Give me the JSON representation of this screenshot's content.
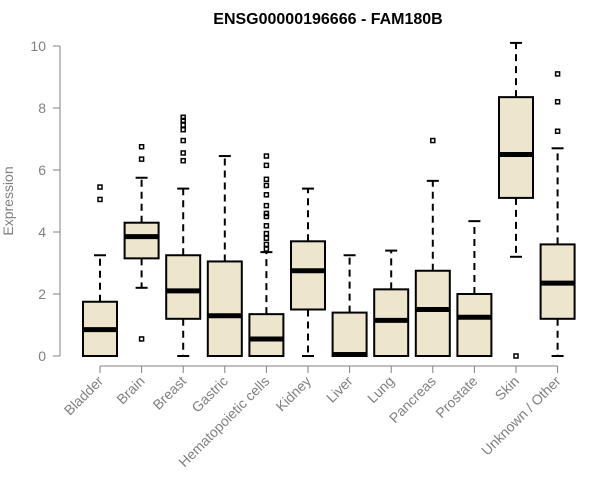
{
  "chart_data": {
    "type": "box",
    "title": "ENSG00000196666 - FAM180B",
    "ylabel": "Expression",
    "xlabel": "",
    "ylim": [
      0,
      10
    ],
    "yticks": [
      0,
      2,
      4,
      6,
      8,
      10
    ],
    "colors": {
      "box_fill": "#ede5cc",
      "box_stroke": "#000000",
      "axis": "#808080",
      "title": "#000000"
    },
    "grid": false,
    "categories": [
      "Bladder",
      "Brain",
      "Breast",
      "Gastric",
      "Hematopoietic cells",
      "Kidney",
      "Liver",
      "Lung",
      "Pancreas",
      "Prostate",
      "Skin",
      "Unknown / Other"
    ],
    "boxes": [
      {
        "name": "Bladder",
        "min": 0,
        "q1": 0,
        "median": 0.85,
        "q3": 1.75,
        "max": 3.25,
        "outliers": [
          5.05,
          5.45
        ]
      },
      {
        "name": "Brain",
        "min": 2.2,
        "q1": 3.15,
        "median": 3.85,
        "q3": 4.3,
        "max": 5.75,
        "outliers": [
          0.55,
          6.35,
          6.75
        ]
      },
      {
        "name": "Breast",
        "min": 0,
        "q1": 1.2,
        "median": 2.1,
        "q3": 3.25,
        "max": 5.4,
        "outliers": [
          6.3,
          6.55,
          6.95,
          7.3,
          7.45,
          7.6,
          7.7
        ]
      },
      {
        "name": "Gastric",
        "min": 0,
        "q1": 0,
        "median": 1.3,
        "q3": 3.05,
        "max": 6.45,
        "outliers": []
      },
      {
        "name": "Hematopoietic cells",
        "min": 0,
        "q1": 0,
        "median": 0.55,
        "q3": 1.35,
        "max": 3.35,
        "outliers": [
          3.45,
          3.6,
          3.8,
          3.95,
          4.2,
          4.5,
          4.6,
          4.85,
          5.2,
          5.5,
          5.7,
          6.15,
          6.45
        ]
      },
      {
        "name": "Kidney",
        "min": 0,
        "q1": 1.5,
        "median": 2.75,
        "q3": 3.7,
        "max": 5.4,
        "outliers": []
      },
      {
        "name": "Liver",
        "min": 0,
        "q1": 0,
        "median": 0.05,
        "q3": 1.4,
        "max": 3.25,
        "outliers": []
      },
      {
        "name": "Lung",
        "min": 0,
        "q1": 0,
        "median": 1.15,
        "q3": 2.15,
        "max": 3.4,
        "outliers": []
      },
      {
        "name": "Pancreas",
        "min": 0,
        "q1": 0,
        "median": 1.5,
        "q3": 2.75,
        "max": 5.65,
        "outliers": [
          6.95
        ]
      },
      {
        "name": "Prostate",
        "min": 0,
        "q1": 0,
        "median": 1.25,
        "q3": 2.0,
        "max": 4.35,
        "outliers": []
      },
      {
        "name": "Skin",
        "min": 3.2,
        "q1": 5.1,
        "median": 6.5,
        "q3": 8.35,
        "max": 10.1,
        "outliers": [
          0
        ]
      },
      {
        "name": "Unknown / Other",
        "min": 0,
        "q1": 1.2,
        "median": 2.35,
        "q3": 3.6,
        "max": 6.7,
        "outliers": [
          7.25,
          8.2,
          9.1
        ]
      }
    ]
  }
}
